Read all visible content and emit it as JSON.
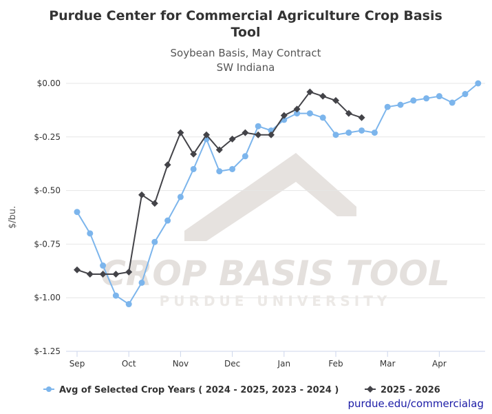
{
  "chart_data": {
    "type": "line",
    "title": "Purdue Center for Commercial Agriculture Crop Basis Tool",
    "title_lines": [
      "Purdue Center for Commercial Agriculture Crop Basis",
      "Tool"
    ],
    "subtitle_lines": [
      "Soybean Basis, May Contract",
      "SW Indiana"
    ],
    "ylabel": "$/bu.",
    "xlabel": "",
    "ylim": [
      -1.25,
      0.0
    ],
    "y_ticks": [
      0.0,
      -0.25,
      -0.5,
      -0.75,
      -1.0,
      -1.25
    ],
    "y_tick_labels": [
      "$0.00",
      "$-0.25",
      "$-0.50",
      "$-0.75",
      "$-1.00",
      "$-1.25"
    ],
    "x_ticks": [
      0,
      4,
      8,
      12,
      16,
      20,
      24,
      28
    ],
    "x_tick_labels": [
      "Sep",
      "Oct",
      "Nov",
      "Dec",
      "Jan",
      "Feb",
      "Mar",
      "Apr"
    ],
    "xlim": [
      0,
      31
    ],
    "grid": "horizontal",
    "legend_position": "bottom",
    "series": [
      {
        "name": "Avg of Selected Crop Years ( 2024 - 2025, 2023 - 2024 )",
        "color": "#7cb5ec",
        "marker": "circle",
        "x": [
          0,
          1,
          2,
          3,
          4,
          5,
          6,
          7,
          8,
          9,
          10,
          11,
          12,
          13,
          14,
          15,
          16,
          17,
          18,
          19,
          20,
          21,
          22,
          23,
          24,
          25,
          26,
          27,
          28,
          29,
          30,
          31
        ],
        "values": [
          -0.6,
          -0.7,
          -0.85,
          -0.99,
          -1.03,
          -0.93,
          -0.74,
          -0.64,
          -0.53,
          -0.4,
          -0.26,
          -0.41,
          -0.4,
          -0.34,
          -0.2,
          -0.22,
          -0.17,
          -0.14,
          -0.14,
          -0.16,
          -0.24,
          -0.23,
          -0.22,
          -0.23,
          -0.11,
          -0.1,
          -0.08,
          -0.07,
          -0.06,
          -0.09,
          -0.05,
          0.0
        ]
      },
      {
        "name": "2025 - 2026",
        "color": "#434348",
        "marker": "diamond",
        "x": [
          0,
          1,
          2,
          3,
          4,
          5,
          6,
          7,
          8,
          9,
          10,
          11,
          12,
          13,
          14,
          15,
          16,
          17,
          18,
          19,
          20,
          21,
          22
        ],
        "values": [
          -0.87,
          -0.89,
          -0.89,
          -0.89,
          -0.88,
          -0.52,
          -0.56,
          -0.38,
          -0.23,
          -0.33,
          -0.24,
          -0.31,
          -0.26,
          -0.23,
          -0.24,
          -0.24,
          -0.15,
          -0.12,
          -0.04,
          -0.06,
          -0.08,
          -0.14,
          -0.16
        ]
      }
    ]
  },
  "watermark": {
    "line1": "CROP BASIS TOOL",
    "line2": "PURDUE UNIVERSITY"
  },
  "credit": "purdue.edu/commercialag"
}
